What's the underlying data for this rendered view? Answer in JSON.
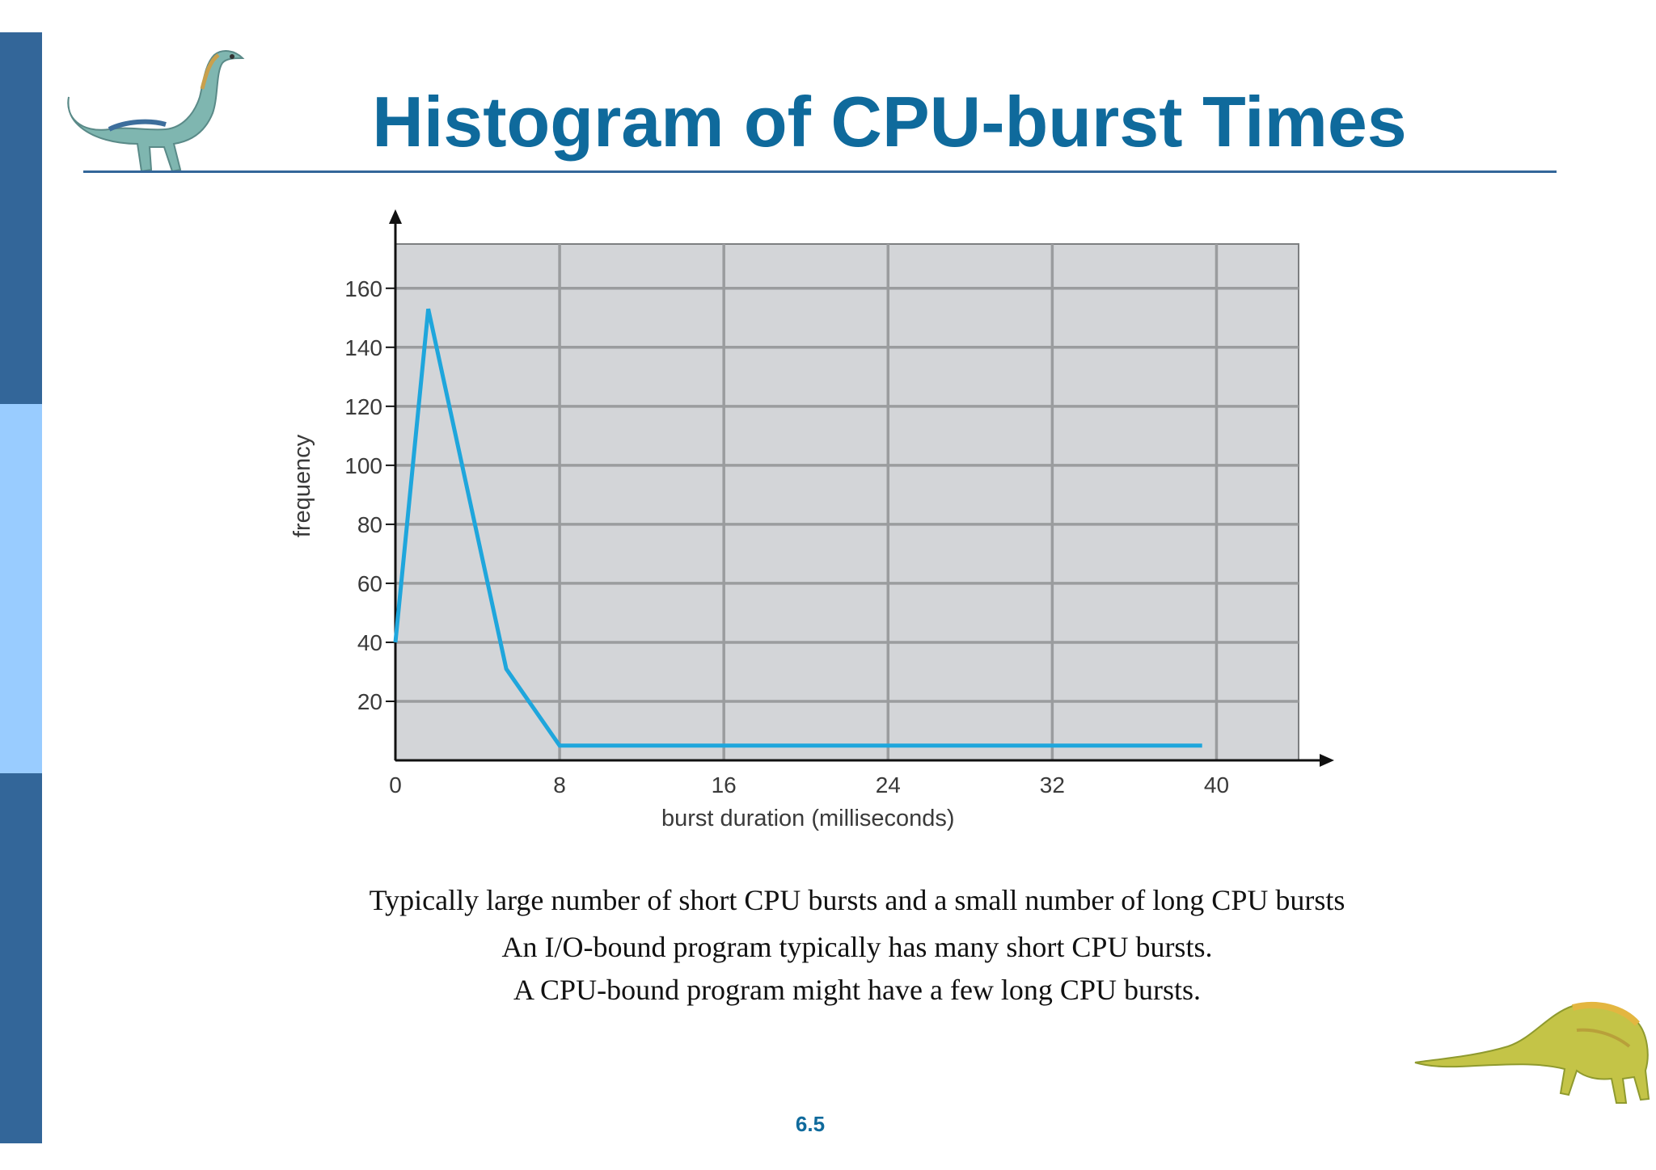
{
  "slide": {
    "title": "Histogram of CPU-burst Times",
    "captions": [
      "Typically large number of short CPU bursts and a small number of long CPU bursts",
      "An I/O-bound program typically has many short CPU bursts.",
      "A CPU-bound program might have a few long CPU bursts."
    ],
    "page_number": "6.5",
    "colors": {
      "title": "#0f6a9c",
      "sidebar_dark": "#336699",
      "sidebar_light": "#99ccff",
      "rule": "#336699"
    }
  },
  "chart_data": {
    "type": "line",
    "title": "",
    "xlabel": "burst duration (milliseconds)",
    "ylabel": "frequency",
    "x": [
      0,
      1.6,
      5.4,
      8,
      39.3
    ],
    "y": [
      40,
      153,
      31,
      5,
      5
    ],
    "xlim": [
      0,
      44
    ],
    "ylim": [
      0,
      175
    ],
    "xticks": [
      0,
      8,
      16,
      24,
      32,
      40
    ],
    "yticks": [
      20,
      40,
      60,
      80,
      100,
      120,
      140,
      160
    ],
    "grid": true,
    "line_color": "#1fa6dc",
    "plot_background": "#d3d5d8",
    "grid_color": "#9a9c9e"
  }
}
